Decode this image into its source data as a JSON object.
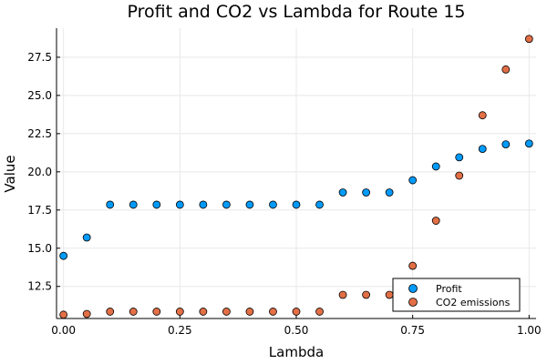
{
  "colors": {
    "profit": "#009AF9",
    "co2": "#E26F46",
    "background": "#ffffff",
    "grid": "#e8e8e8"
  },
  "chart_data": {
    "type": "scatter",
    "title": "Profit and CO2 vs Lambda for Route 15",
    "xlabel": "Lambda",
    "ylabel": "Value",
    "xlim": [
      -0.015,
      1.015
    ],
    "ylim": [
      10.4,
      29.4
    ],
    "xticks": [
      0.0,
      0.25,
      0.5,
      0.75,
      1.0
    ],
    "xtick_labels": [
      "0.00",
      "0.25",
      "0.50",
      "0.75",
      "1.00"
    ],
    "yticks": [
      12.5,
      15.0,
      17.5,
      20.0,
      22.5,
      25.0,
      27.5
    ],
    "ytick_labels": [
      "12.5",
      "15.0",
      "17.5",
      "20.0",
      "22.5",
      "25.0",
      "27.5"
    ],
    "grid": true,
    "legend_position": "bottom-right",
    "x": [
      0.0,
      0.05,
      0.1,
      0.15,
      0.2,
      0.25,
      0.3,
      0.35,
      0.4,
      0.45,
      0.5,
      0.55,
      0.6,
      0.65,
      0.7,
      0.75,
      0.8,
      0.85,
      0.9,
      0.95,
      1.0
    ],
    "series": [
      {
        "name": "Profit",
        "values": [
          14.5,
          15.7,
          17.85,
          17.85,
          17.85,
          17.85,
          17.85,
          17.85,
          17.85,
          17.85,
          17.85,
          17.85,
          18.65,
          18.65,
          18.65,
          19.45,
          20.35,
          20.95,
          21.5,
          21.8,
          21.85
        ]
      },
      {
        "name": "CO2 emissions",
        "values": [
          10.65,
          10.7,
          10.85,
          10.85,
          10.85,
          10.85,
          10.85,
          10.85,
          10.85,
          10.85,
          10.85,
          10.85,
          11.95,
          11.95,
          11.95,
          13.85,
          16.8,
          19.75,
          23.7,
          26.7,
          28.7
        ]
      }
    ]
  }
}
